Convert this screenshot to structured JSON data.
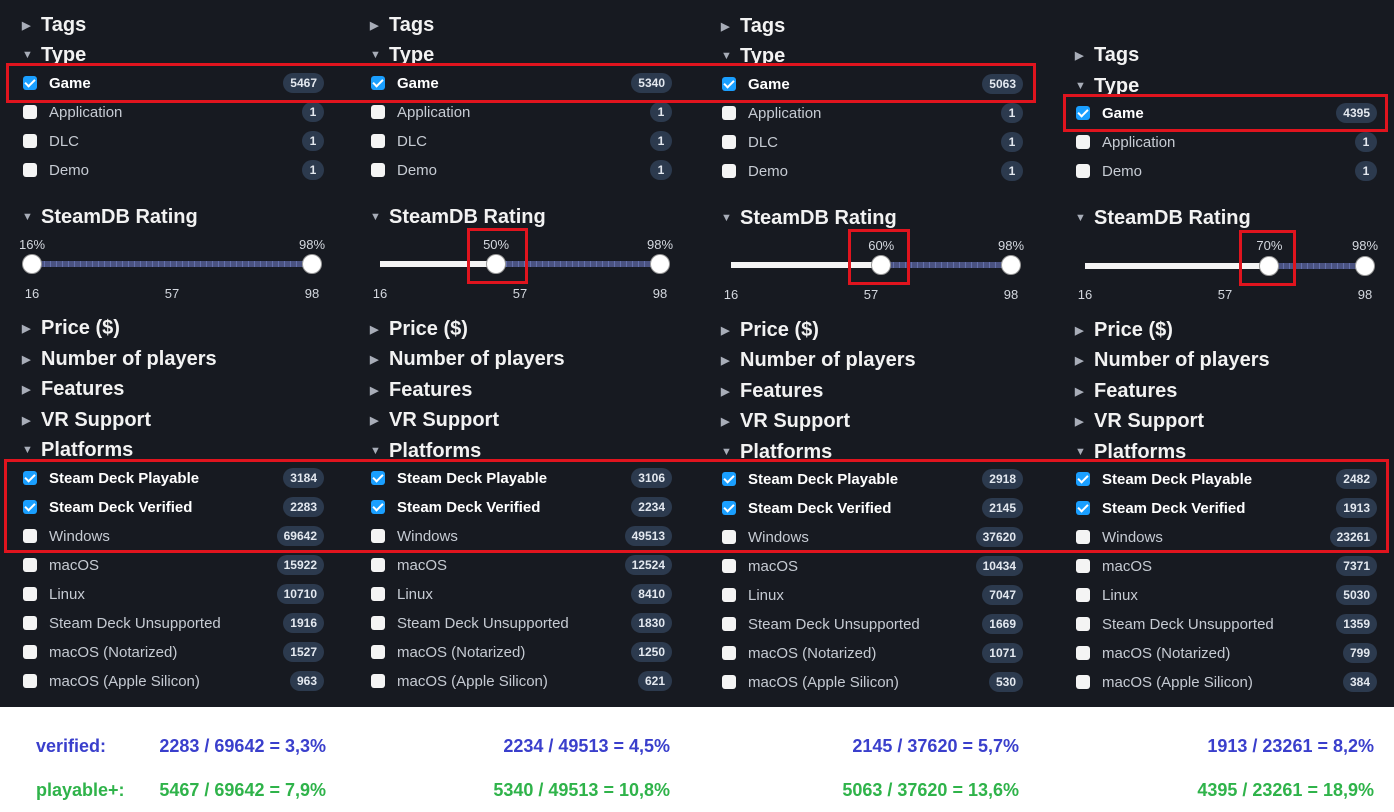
{
  "sections": {
    "tags": "Tags",
    "type": "Type",
    "rating": "SteamDB Rating",
    "price": "Price ($)",
    "players": "Number of players",
    "features": "Features",
    "vr": "VR Support",
    "platforms": "Platforms"
  },
  "type_labels": {
    "game": "Game",
    "application": "Application",
    "dlc": "DLC",
    "demo": "Demo"
  },
  "platform_labels": {
    "sdp": "Steam Deck Playable",
    "sdv": "Steam Deck Verified",
    "windows": "Windows",
    "macos": "macOS",
    "linux": "Linux",
    "sdu": "Steam Deck Unsupported",
    "notarized": "macOS (Notarized)",
    "silicon": "macOS (Apple Silicon)"
  },
  "colors": {
    "background": "#171a21",
    "checkbox_on": "#1a9fff",
    "badge": "#2c3a4e",
    "highlight": "#e0141e",
    "verified": "#3a3fcc",
    "playable": "#2fb34a"
  },
  "panels": [
    {
      "types": {
        "game": "5467",
        "application": "1",
        "dlc": "1",
        "demo": "1"
      },
      "rating": {
        "min_label": "16%",
        "max_label": "98%",
        "ticks": [
          "16",
          "57",
          "98"
        ],
        "min": 16,
        "max": 98
      },
      "platforms": {
        "sdp": "3184",
        "sdv": "2283",
        "windows": "69642",
        "macos": "15922",
        "linux": "10710",
        "sdu": "1916",
        "notarized": "1527",
        "silicon": "963"
      }
    },
    {
      "types": {
        "game": "5340",
        "application": "1",
        "dlc": "1",
        "demo": "1"
      },
      "rating": {
        "min_label": "50%",
        "max_label": "98%",
        "ticks": [
          "16",
          "57",
          "98"
        ],
        "min": 50,
        "max": 98
      },
      "platforms": {
        "sdp": "3106",
        "sdv": "2234",
        "windows": "49513",
        "macos": "12524",
        "linux": "8410",
        "sdu": "1830",
        "notarized": "1250",
        "silicon": "621"
      }
    },
    {
      "types": {
        "game": "5063",
        "application": "1",
        "dlc": "1",
        "demo": "1"
      },
      "rating": {
        "min_label": "60%",
        "max_label": "98%",
        "ticks": [
          "16",
          "57",
          "98"
        ],
        "min": 60,
        "max": 98
      },
      "platforms": {
        "sdp": "2918",
        "sdv": "2145",
        "windows": "37620",
        "macos": "10434",
        "linux": "7047",
        "sdu": "1669",
        "notarized": "1071",
        "silicon": "530"
      }
    },
    {
      "types": {
        "game": "4395",
        "application": "1",
        "demo": "1"
      },
      "rating": {
        "min_label": "70%",
        "max_label": "98%",
        "ticks": [
          "16",
          "57",
          "98"
        ],
        "min": 70,
        "max": 98
      },
      "platforms": {
        "sdp": "2482",
        "sdv": "1913",
        "windows": "23261",
        "macos": "7371",
        "linux": "5030",
        "sdu": "1359",
        "notarized": "799",
        "silicon": "384"
      }
    }
  ],
  "footer": {
    "verified_label": "verified:",
    "playable_label": "playable+:",
    "verified": [
      "2283 / 69642 = 3,3%",
      "2234 / 49513 = 4,5%",
      "2145 / 37620 = 5,7%",
      "1913 / 23261 = 8,2%"
    ],
    "playable": [
      "5467 / 69642 = 7,9%",
      "5340 / 49513 = 10,8%",
      "5063 / 37620 = 13,6%",
      "4395 / 23261 = 18,9%"
    ]
  }
}
